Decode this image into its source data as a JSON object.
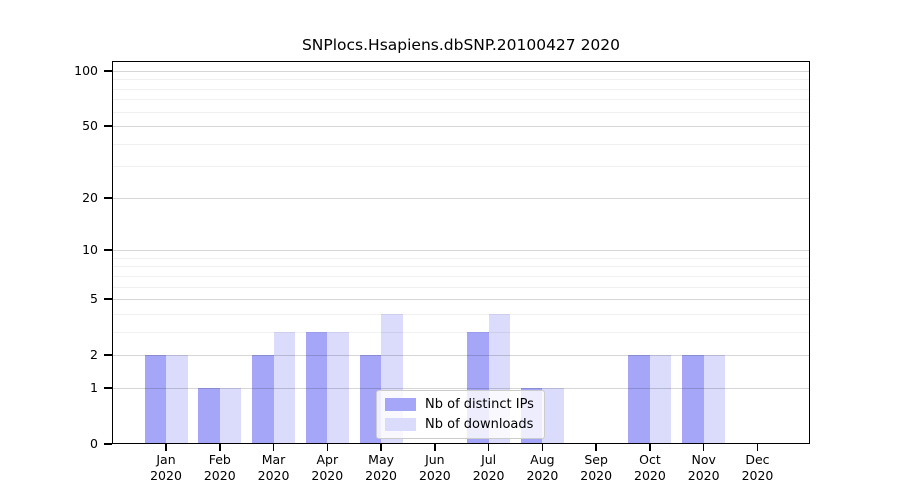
{
  "chart_data": {
    "type": "bar",
    "title": "SNPlocs.Hsapiens.dbSNP.20100427 2020",
    "year": "2020",
    "months": [
      "Jan",
      "Feb",
      "Mar",
      "Apr",
      "May",
      "Jun",
      "Jul",
      "Aug",
      "Sep",
      "Oct",
      "Nov",
      "Dec"
    ],
    "series": [
      {
        "name": "Nb of distinct IPs",
        "color": "#a6a6f8",
        "values": [
          2,
          1,
          2,
          3,
          2,
          0,
          3,
          1,
          0,
          2,
          2,
          0
        ]
      },
      {
        "name": "Nb of downloads",
        "color": "#dbdbfb",
        "values": [
          2,
          1,
          3,
          3,
          4,
          0,
          4,
          1,
          0,
          2,
          2,
          0
        ]
      }
    ],
    "yticks": [
      0,
      1,
      2,
      5,
      10,
      20,
      50,
      100
    ],
    "yticks_minor": [
      3,
      4,
      6,
      7,
      8,
      9,
      30,
      40,
      60,
      70,
      80,
      90
    ],
    "scale": "log1p",
    "ylim": [
      0,
      112
    ],
    "grid": true,
    "legend_position": "lower center",
    "background_color": "#ffffff",
    "axis_color": "#000000"
  }
}
